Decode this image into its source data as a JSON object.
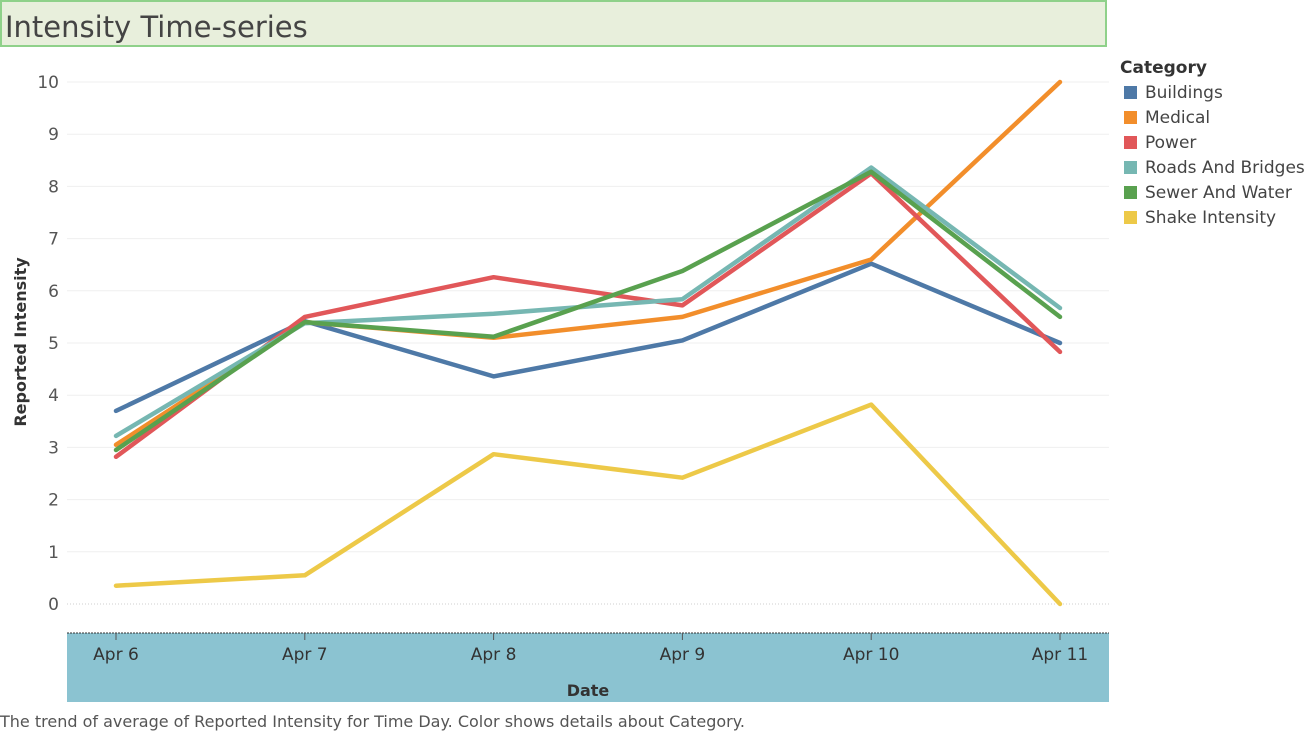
{
  "title": "Intensity Time-series",
  "caption": "The trend of average of Reported Intensity  for Time Day.  Color shows details about Category.",
  "legend_title": "Category",
  "chart_data": {
    "type": "line",
    "title": "Intensity Time-series",
    "xlabel": "Date",
    "ylabel": "Reported Intensity",
    "categories": [
      "Apr 6",
      "Apr 7",
      "Apr 8",
      "Apr 9",
      "Apr 10",
      "Apr 11"
    ],
    "ylim": [
      0,
      10
    ],
    "yticks": [
      0,
      1,
      2,
      3,
      4,
      5,
      6,
      7,
      8,
      9,
      10
    ],
    "grid": true,
    "legend_position": "right",
    "series": [
      {
        "name": "Buildings",
        "color": "#4e79a7",
        "values": [
          3.7,
          5.42,
          4.36,
          5.05,
          6.52,
          5.0
        ]
      },
      {
        "name": "Medical",
        "color": "#f28e2b",
        "values": [
          3.05,
          5.4,
          5.1,
          5.5,
          6.6,
          10.0
        ]
      },
      {
        "name": "Power",
        "color": "#e15759",
        "values": [
          2.82,
          5.5,
          6.26,
          5.72,
          8.25,
          4.83
        ]
      },
      {
        "name": "Roads And Bridges",
        "color": "#76b7b2",
        "values": [
          3.22,
          5.38,
          5.56,
          5.84,
          8.36,
          5.67
        ]
      },
      {
        "name": "Sewer And Water",
        "color": "#59a14f",
        "values": [
          2.95,
          5.4,
          5.12,
          6.38,
          8.28,
          5.5
        ]
      },
      {
        "name": "Shake Intensity",
        "color": "#edc948",
        "values": [
          0.35,
          0.55,
          2.87,
          2.42,
          3.82,
          0.0
        ]
      }
    ]
  }
}
